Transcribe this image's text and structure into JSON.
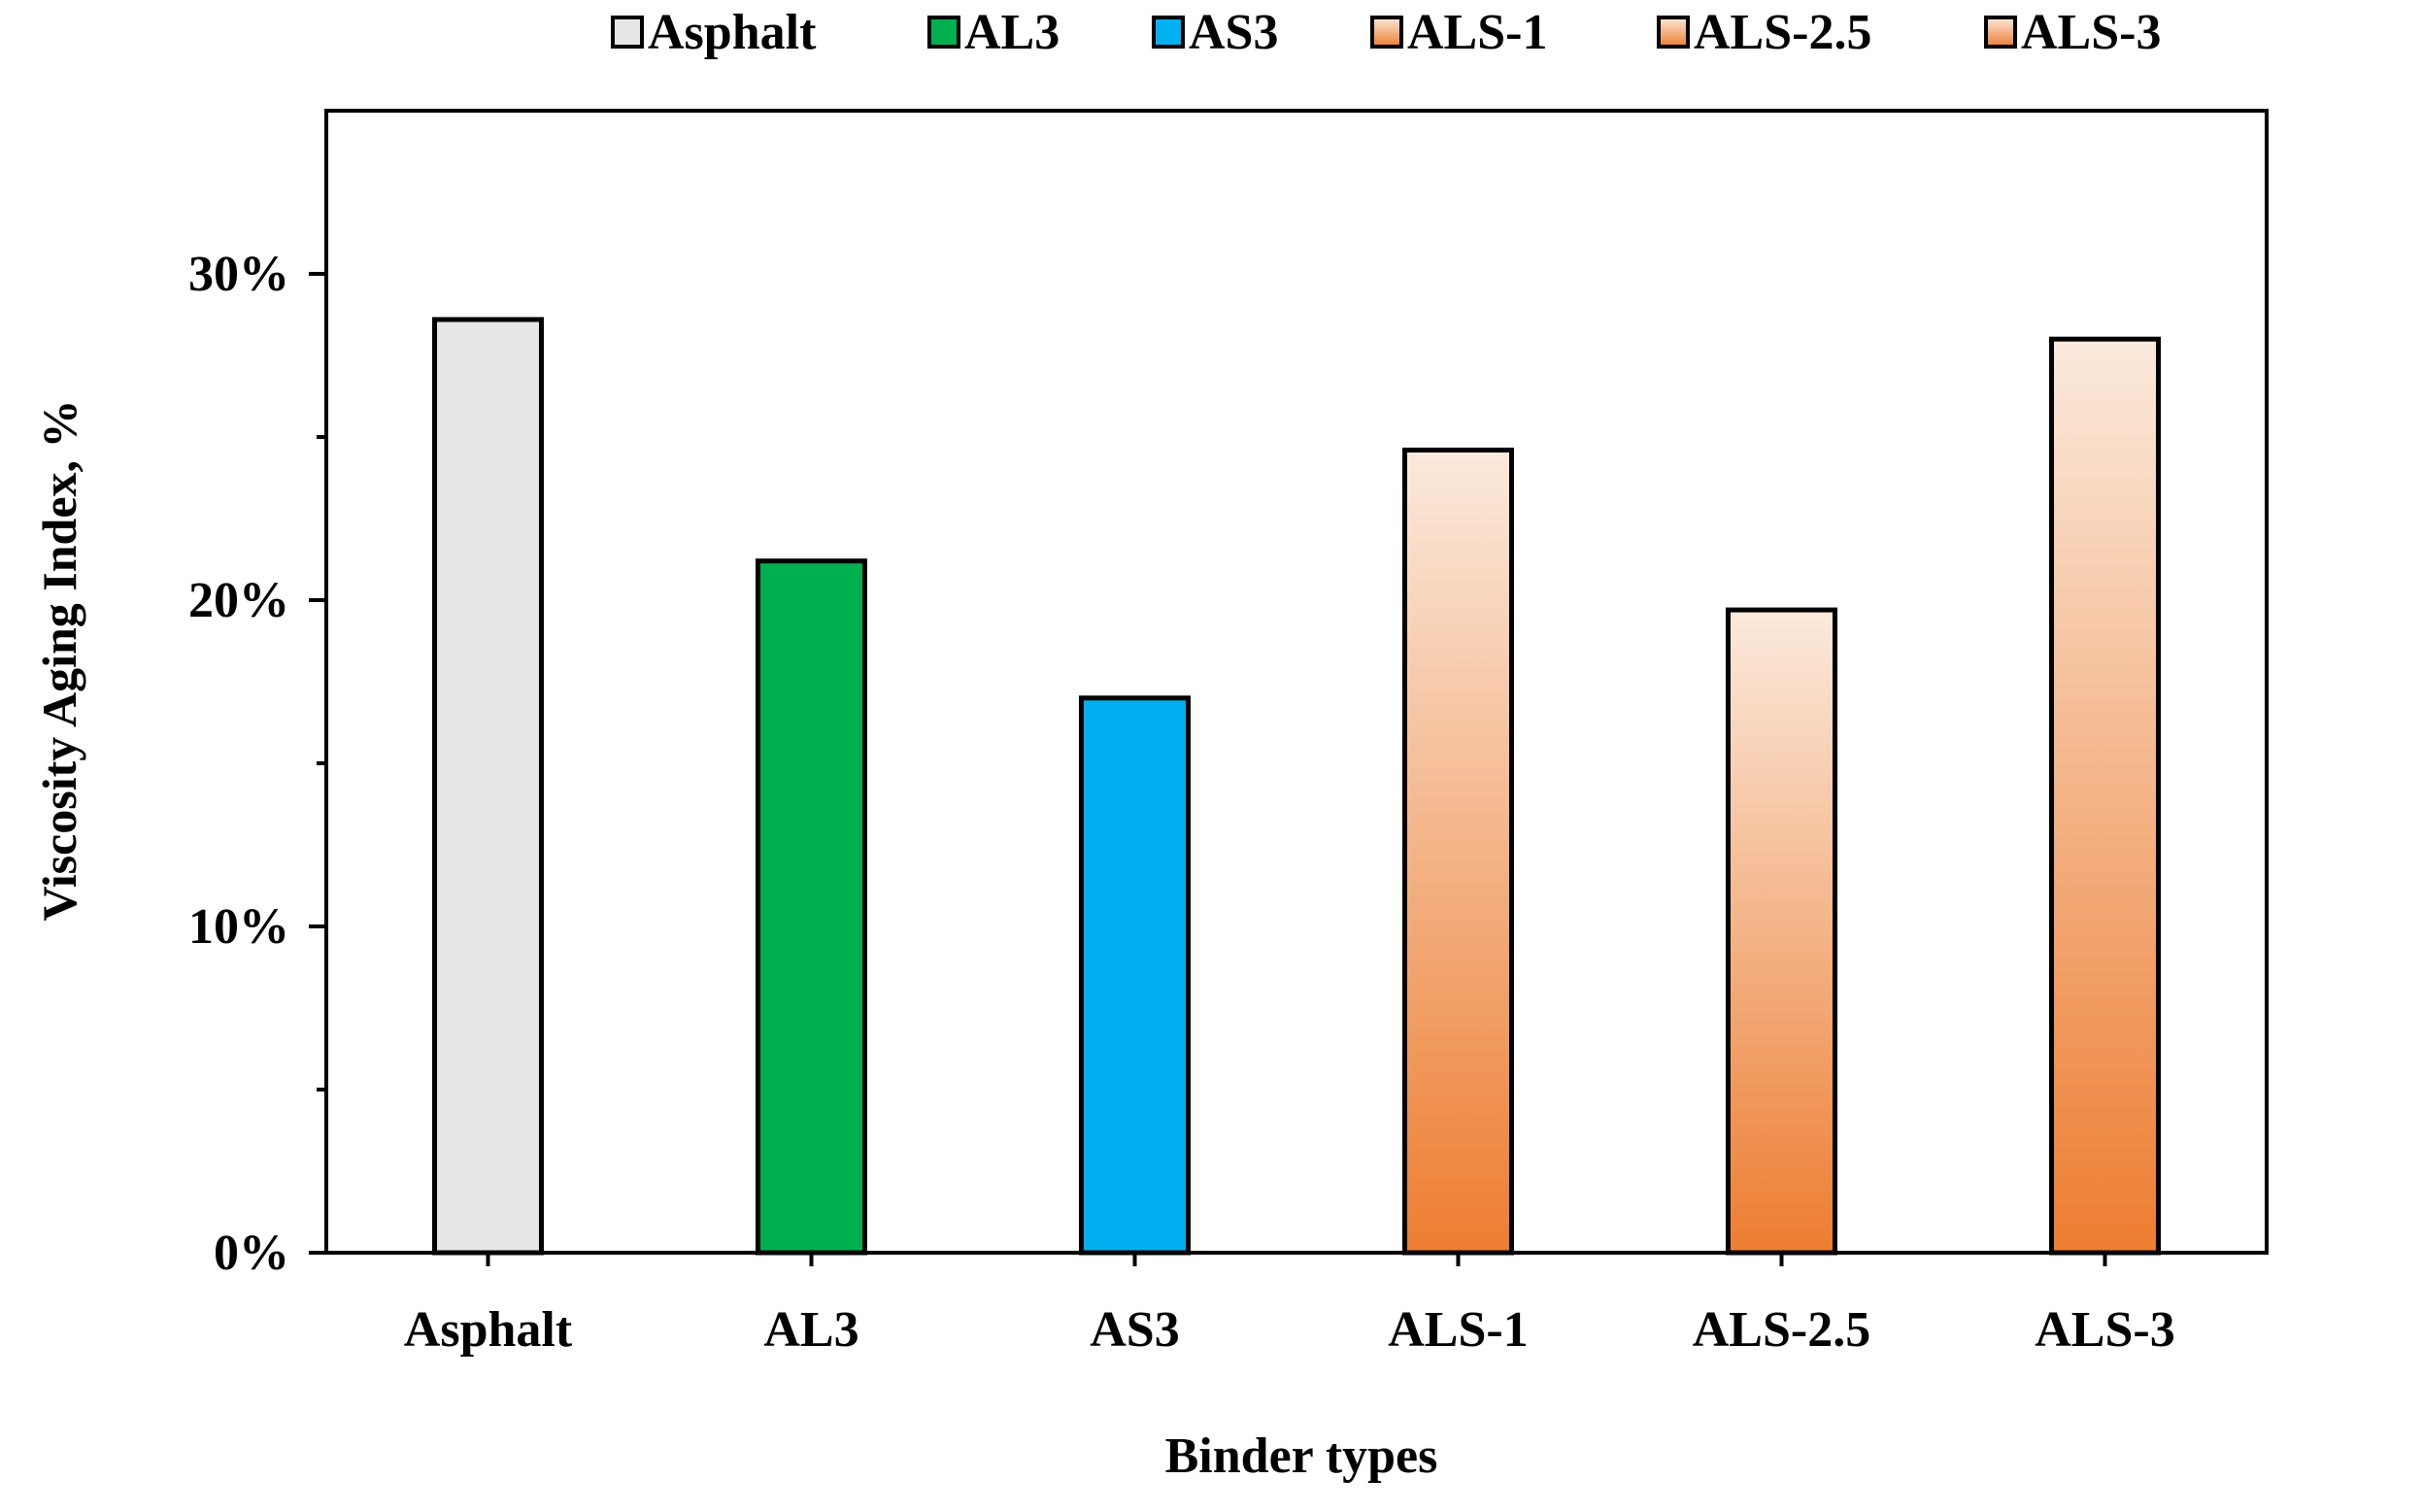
{
  "chart_data": {
    "type": "bar",
    "categories": [
      "Asphalt",
      "AL3",
      "AS3",
      "ALS-1",
      "ALS-2.5",
      "ALS-3"
    ],
    "values": [
      28.6,
      21.2,
      17.0,
      24.6,
      19.7,
      28.0
    ],
    "value_unit": "%",
    "xlabel": "Binder types",
    "ylabel": "Viscosity Aging Index, %",
    "ylim": [
      0,
      35
    ],
    "y_ticks": [
      {
        "value": 0,
        "label": "0%"
      },
      {
        "value": 10,
        "label": "10%"
      },
      {
        "value": 20,
        "label": "20%"
      },
      {
        "value": 30,
        "label": "30%"
      }
    ],
    "y_minor_ticks": [
      5,
      15,
      25
    ],
    "grid": false,
    "legend": {
      "placement": "top-center, above plot",
      "entries": [
        "Asphalt",
        "AL3",
        "AS3",
        "ALS-1",
        "ALS-2.5",
        "ALS-3"
      ]
    },
    "bar_colors": {
      "Asphalt": "#e6e6e6",
      "AL3": "#00b050",
      "AS3": "#00b0f0",
      "ALS-1": "gradient-orange",
      "ALS-2.5": "gradient-orange",
      "ALS-3": "gradient-orange"
    },
    "gradient_orange": {
      "top": "#fbeadd",
      "bottom": "#ed7d31"
    }
  }
}
